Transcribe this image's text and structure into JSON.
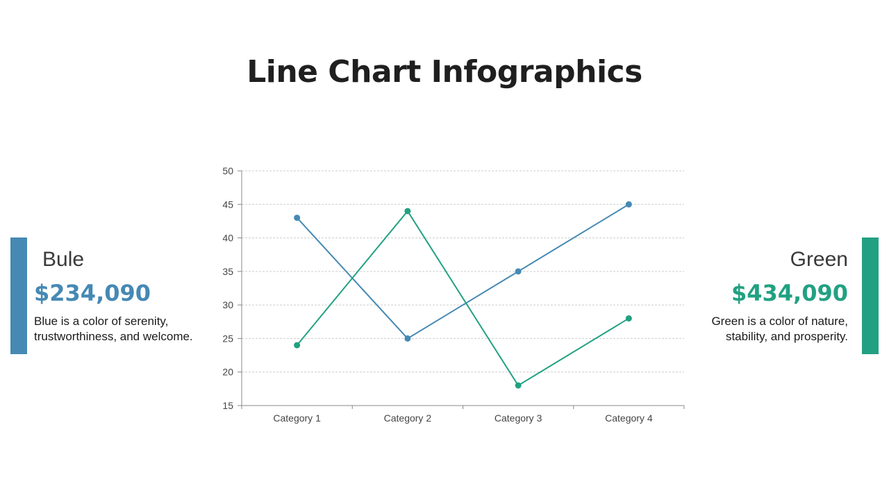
{
  "page": {
    "title": "Line Chart Infographics"
  },
  "colors": {
    "blue": "#4589b4",
    "green": "#21a182",
    "grid": "#cccccc",
    "axis": "#888888"
  },
  "left_panel": {
    "label": "Bule",
    "value": "$234,090",
    "desc_line1": "Blue is a color of serenity,",
    "desc_line2": "trustworthiness, and welcome.",
    "color": "#4589b4"
  },
  "right_panel": {
    "label": "Green",
    "value": "$434,090",
    "desc_line1": "Green is a color of nature,",
    "desc_line2": "stability, and prosperity.",
    "color": "#21a182"
  },
  "chart_data": {
    "type": "line",
    "categories": [
      "Category 1",
      "Category 2",
      "Category 3",
      "Category 4"
    ],
    "series": [
      {
        "values": [
          43,
          25,
          35,
          45
        ],
        "color": "#4589b4"
      },
      {
        "values": [
          24,
          44,
          18,
          28
        ],
        "color": "#21a182"
      }
    ],
    "ylim": [
      15,
      50
    ],
    "yticks": [
      15,
      20,
      25,
      30,
      35,
      40,
      45,
      50
    ],
    "grid": true,
    "legend": "none"
  }
}
